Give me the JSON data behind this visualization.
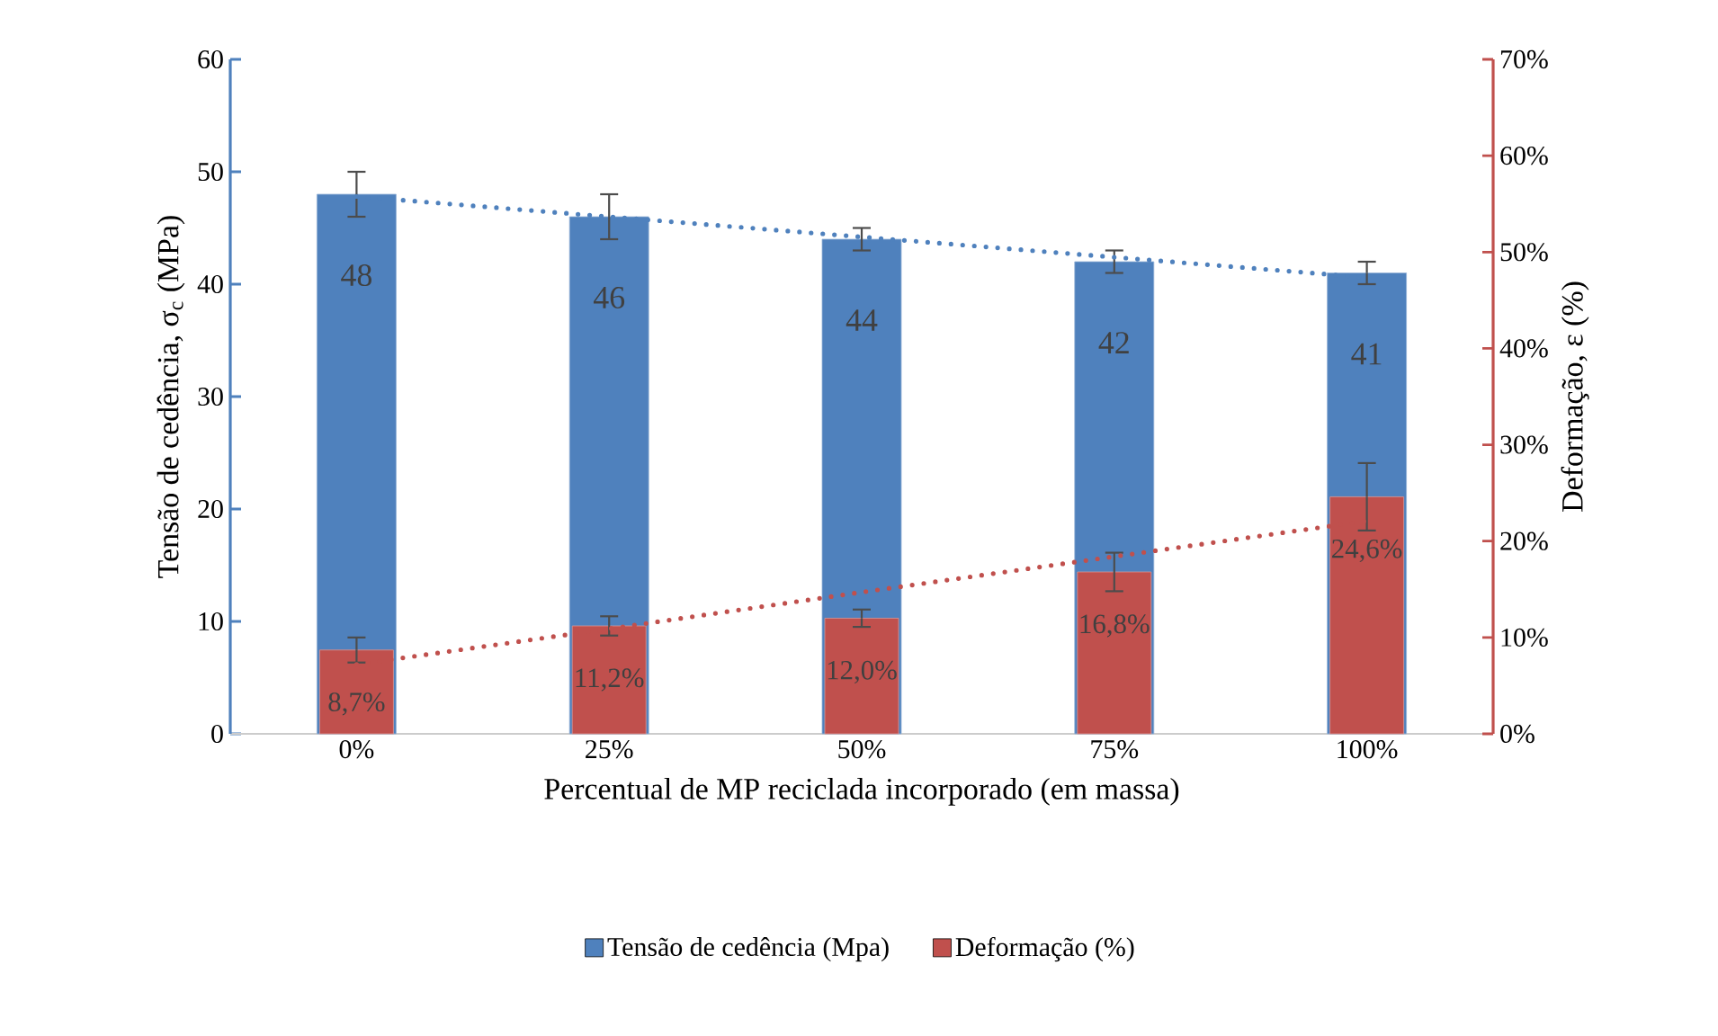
{
  "chart_data": {
    "type": "bar",
    "xlabel": "Percentual de MP reciclada incorporado (em massa)",
    "ylabel": "Tensão de cedência, σ$_{c}$ (MPa)",
    "y2label": "Deformação, ε (%)",
    "categories": [
      "0%",
      "25%",
      "50%",
      "75%",
      "100%"
    ],
    "series": [
      {
        "name": "Tensão de cedência (Mpa)",
        "color": "#4f81bd",
        "values": [
          48,
          46,
          44,
          42,
          41
        ],
        "errors": [
          2,
          2,
          1,
          1,
          1
        ],
        "value_labels": [
          "48",
          "46",
          "44",
          "42",
          "41"
        ]
      },
      {
        "name": "Deformação (%)",
        "color": "#c0504d",
        "axis": "y2",
        "values": [
          8.7,
          11.2,
          12.0,
          16.8,
          24.6
        ],
        "errors": [
          1.3,
          1,
          0.9,
          2,
          3.5
        ],
        "value_labels": [
          "8,7%",
          "11,2%",
          "12,0%",
          "16,8%",
          "24,6%"
        ]
      },
      {
        "type": "line",
        "color": "#4f81bd",
        "line_style": "dotted",
        "values": [
          47.8,
          46.0,
          44.2,
          42.4,
          40.6
        ]
      },
      {
        "type": "line",
        "color": "#c0504d",
        "axis": "y2",
        "line_style": "dotted",
        "values": [
          7.2,
          10.9,
          14.7,
          18.4,
          22.1
        ]
      }
    ],
    "ylim": [
      0,
      60
    ],
    "yticks": [
      0,
      10,
      20,
      30,
      40,
      50,
      60
    ],
    "y2lim": [
      0,
      70
    ],
    "y2ticks": [
      {
        "value": 0,
        "label": "0%"
      },
      {
        "value": 10,
        "label": "10%"
      },
      {
        "value": 20,
        "label": "20%"
      },
      {
        "value": 30,
        "label": "30%"
      },
      {
        "value": 40,
        "label": "40%"
      },
      {
        "value": 50,
        "label": "50%"
      },
      {
        "value": 60,
        "label": "60%"
      },
      {
        "value": 70,
        "label": "70%"
      }
    ],
    "grid": false,
    "legend": "bottom"
  }
}
